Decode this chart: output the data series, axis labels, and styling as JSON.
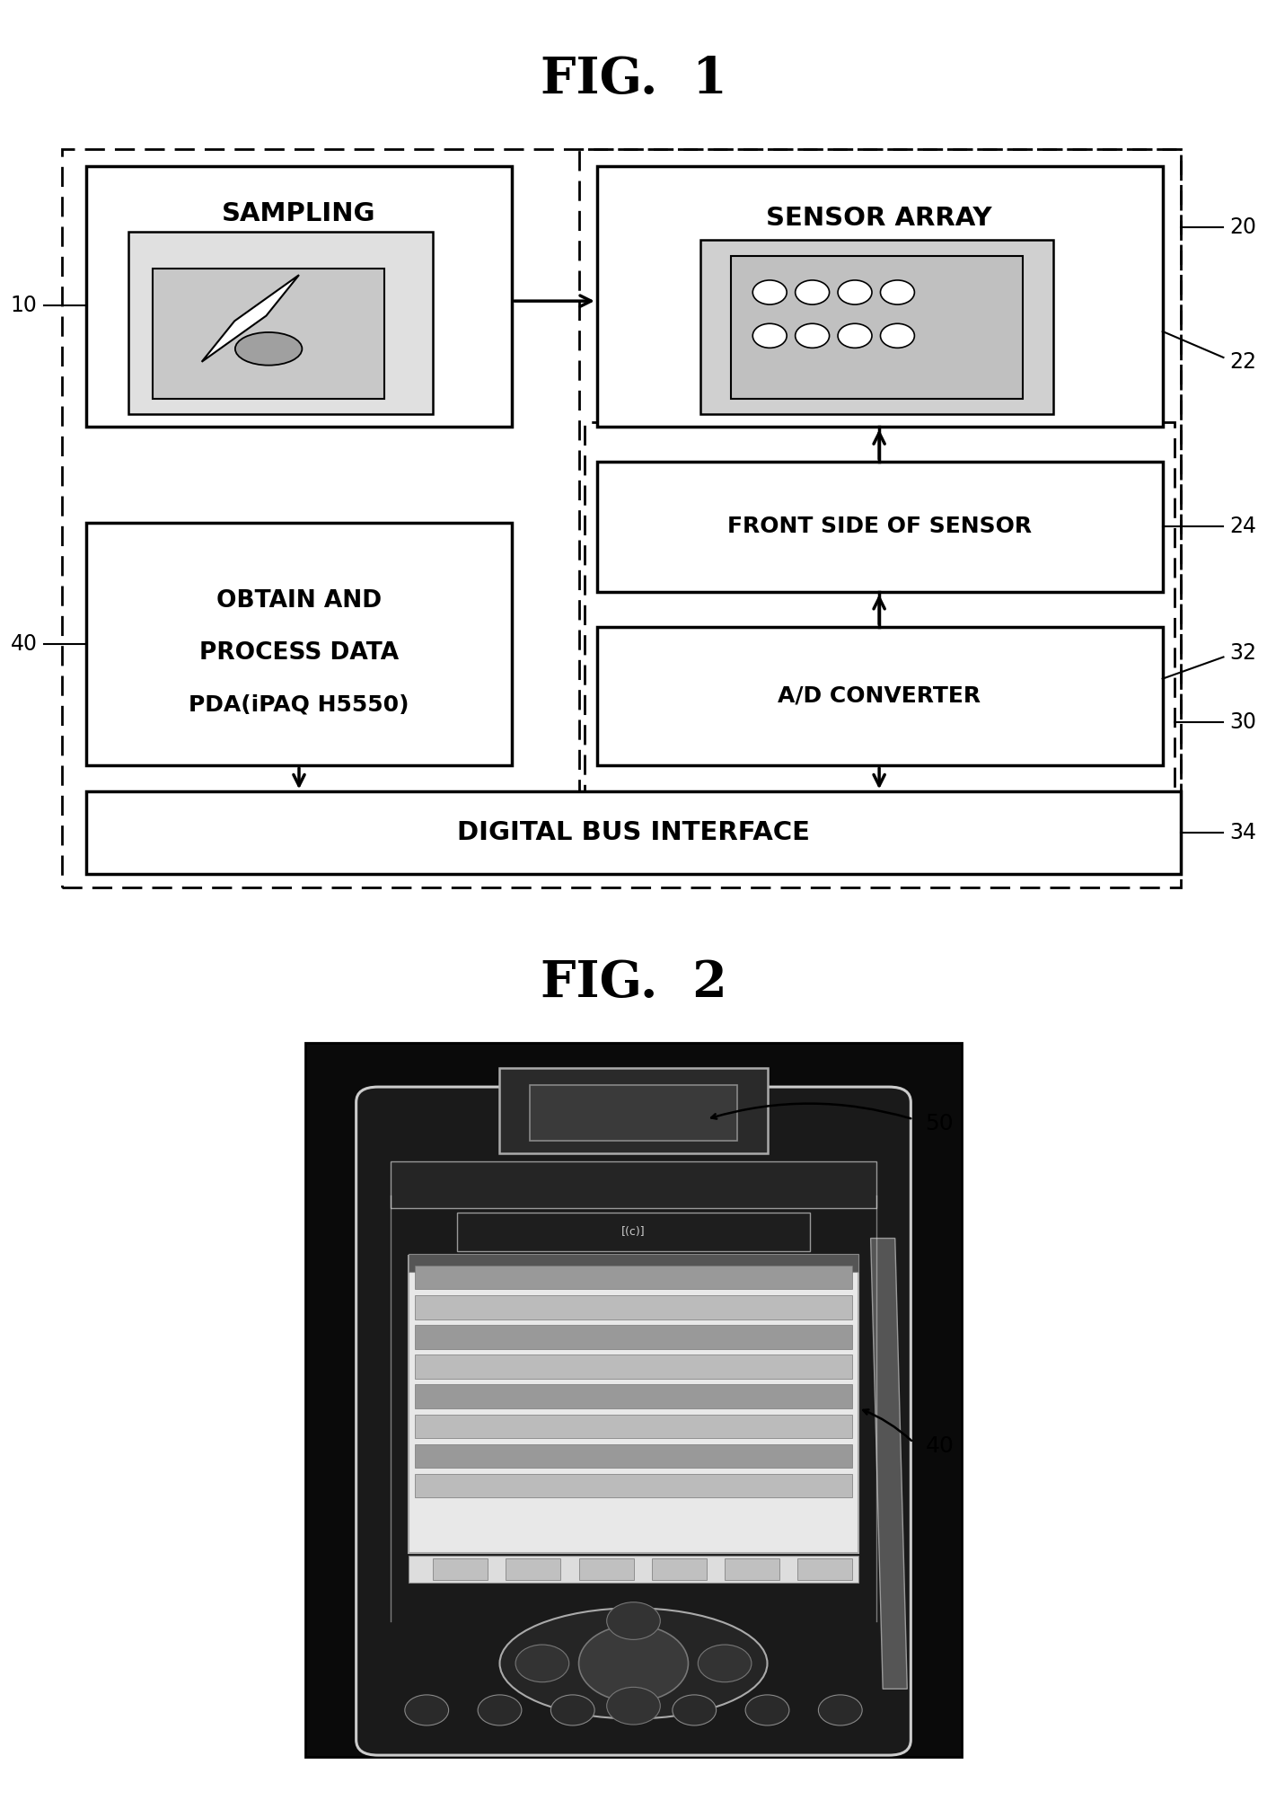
{
  "fig1_title": "FIG.  1",
  "fig2_title": "FIG.  2",
  "bg_color": "#ffffff",
  "box_color": "#000000",
  "text_color": "#000000",
  "label_10": "10",
  "label_20": "20",
  "label_22": "22",
  "label_24": "24",
  "label_30": "30",
  "label_32": "32",
  "label_34": "34",
  "label_40": "40",
  "label_50": "50",
  "sampling_text": "SAMPLING",
  "sensor_array_text": "SENSOR ARRAY",
  "front_side_text": "FRONT SIDE OF SENSOR",
  "obtain_text_line1": "OBTAIN AND",
  "obtain_text_line2": "PROCESS DATA",
  "obtain_text_line3": "PDA(iPAQ H5550)",
  "ad_converter_text": "A/D CONVERTER",
  "digital_bus_text": "DIGITAL BUS INTERFACE"
}
